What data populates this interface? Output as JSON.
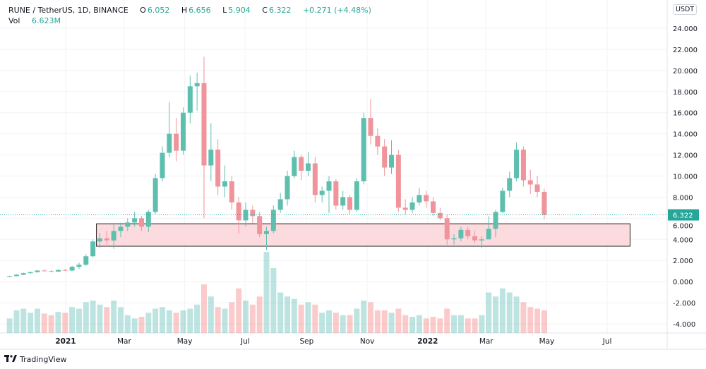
{
  "header": {
    "symbol": "RUNE / TetherUS, 1D, BINANCE",
    "open_label": "O",
    "open": "6.052",
    "high_label": "H",
    "high": "6.656",
    "low_label": "L",
    "low": "5.904",
    "close_label": "C",
    "close": "6.322",
    "change": "+0.271 (+4.48%)",
    "vol_label": "Vol",
    "vol": "6.623M"
  },
  "currency": "USDT",
  "footer": {
    "brand": "TradingView",
    "logo": "TV"
  },
  "colors": {
    "up": "#26a69a",
    "down": "#ef5350",
    "zone_fill": "#fcd7dc",
    "zone_border": "#222222"
  },
  "chart_data": {
    "type": "candlestick",
    "title": "RUNE / TetherUS, 1D, BINANCE",
    "candle_interval_shown": "weekly approximation of daily candles",
    "first_week_start": "2020-11-02",
    "fields": [
      "open",
      "high",
      "low",
      "close",
      "relative_volume"
    ],
    "candles": [
      [
        0.45,
        0.55,
        0.42,
        0.52,
        18
      ],
      [
        0.52,
        0.7,
        0.5,
        0.65,
        28
      ],
      [
        0.65,
        0.85,
        0.6,
        0.8,
        30
      ],
      [
        0.8,
        0.95,
        0.75,
        0.9,
        25
      ],
      [
        0.9,
        1.1,
        0.85,
        1.05,
        30
      ],
      [
        1.05,
        1.15,
        0.95,
        1.0,
        24
      ],
      [
        1.0,
        1.1,
        0.9,
        0.95,
        22
      ],
      [
        0.95,
        1.15,
        0.9,
        1.1,
        26
      ],
      [
        1.1,
        1.2,
        1.0,
        1.05,
        25
      ],
      [
        1.05,
        1.5,
        1.0,
        1.4,
        32
      ],
      [
        1.4,
        1.8,
        1.2,
        1.6,
        30
      ],
      [
        1.6,
        2.6,
        1.5,
        2.4,
        38
      ],
      [
        2.4,
        4.0,
        2.3,
        3.8,
        40
      ],
      [
        3.8,
        4.6,
        3.2,
        4.1,
        35
      ],
      [
        4.1,
        4.8,
        3.3,
        3.9,
        32
      ],
      [
        3.9,
        5.4,
        3.1,
        4.8,
        40
      ],
      [
        4.8,
        5.6,
        4.2,
        5.2,
        32
      ],
      [
        5.2,
        6.0,
        4.8,
        5.6,
        22
      ],
      [
        5.6,
        6.6,
        5.2,
        6.0,
        18
      ],
      [
        6.0,
        6.2,
        4.8,
        5.2,
        20
      ],
      [
        5.2,
        6.8,
        4.7,
        6.6,
        25
      ],
      [
        6.6,
        10.2,
        6.4,
        9.8,
        30
      ],
      [
        9.8,
        12.8,
        9.5,
        12.2,
        32
      ],
      [
        12.2,
        17.0,
        11.8,
        14.0,
        28
      ],
      [
        14.0,
        15.5,
        11.4,
        12.4,
        25
      ],
      [
        12.4,
        16.5,
        12.0,
        16.0,
        28
      ],
      [
        16.0,
        19.5,
        15.0,
        18.5,
        30
      ],
      [
        18.5,
        19.8,
        16.2,
        18.8,
        35
      ],
      [
        18.8,
        21.3,
        6.0,
        11.0,
        60
      ],
      [
        11.0,
        15.0,
        9.5,
        12.5,
        45
      ],
      [
        12.5,
        13.5,
        8.2,
        9.0,
        32
      ],
      [
        9.0,
        11.0,
        8.0,
        9.5,
        30
      ],
      [
        9.5,
        10.0,
        6.8,
        7.5,
        38
      ],
      [
        7.5,
        8.0,
        4.5,
        5.8,
        55
      ],
      [
        5.8,
        7.5,
        5.2,
        6.8,
        40
      ],
      [
        6.8,
        7.2,
        5.5,
        6.2,
        35
      ],
      [
        6.2,
        6.6,
        4.2,
        4.5,
        45
      ],
      [
        4.5,
        5.2,
        3.0,
        4.8,
        100
      ],
      [
        4.8,
        7.2,
        4.6,
        6.8,
        80
      ],
      [
        6.8,
        8.4,
        6.5,
        7.8,
        50
      ],
      [
        7.8,
        10.5,
        7.2,
        10.0,
        45
      ],
      [
        10.0,
        12.4,
        9.8,
        11.8,
        42
      ],
      [
        11.8,
        12.0,
        9.6,
        10.5,
        35
      ],
      [
        10.5,
        12.3,
        10.0,
        11.2,
        38
      ],
      [
        11.2,
        11.8,
        7.5,
        8.2,
        35
      ],
      [
        8.2,
        9.0,
        7.5,
        8.6,
        25
      ],
      [
        8.6,
        10.0,
        6.5,
        9.5,
        28
      ],
      [
        9.5,
        9.7,
        6.8,
        7.2,
        25
      ],
      [
        7.2,
        8.6,
        6.8,
        8.0,
        22
      ],
      [
        8.0,
        8.2,
        6.4,
        6.8,
        22
      ],
      [
        6.8,
        9.8,
        6.6,
        9.5,
        30
      ],
      [
        9.5,
        16.0,
        9.2,
        15.5,
        40
      ],
      [
        15.5,
        17.3,
        13.0,
        13.8,
        38
      ],
      [
        13.8,
        14.5,
        12.0,
        12.8,
        28
      ],
      [
        12.8,
        13.5,
        10.0,
        10.8,
        28
      ],
      [
        10.8,
        13.4,
        10.2,
        12.0,
        25
      ],
      [
        12.0,
        12.5,
        6.6,
        7.0,
        30
      ],
      [
        7.0,
        7.8,
        6.3,
        6.8,
        22
      ],
      [
        6.8,
        8.0,
        6.5,
        7.5,
        20
      ],
      [
        7.5,
        8.9,
        7.2,
        8.2,
        22
      ],
      [
        8.2,
        8.6,
        7.0,
        7.6,
        18
      ],
      [
        7.6,
        8.0,
        6.2,
        6.5,
        20
      ],
      [
        6.5,
        7.0,
        5.8,
        6.0,
        18
      ],
      [
        6.0,
        6.3,
        3.5,
        4.0,
        30
      ],
      [
        4.0,
        4.5,
        3.5,
        4.1,
        22
      ],
      [
        4.1,
        5.2,
        3.8,
        4.9,
        22
      ],
      [
        4.9,
        5.2,
        4.0,
        4.3,
        18
      ],
      [
        4.3,
        4.8,
        3.6,
        3.9,
        18
      ],
      [
        3.9,
        4.3,
        3.2,
        4.0,
        22
      ],
      [
        4.0,
        6.2,
        4.0,
        5.0,
        50
      ],
      [
        5.0,
        6.8,
        4.2,
        6.6,
        45
      ],
      [
        6.6,
        8.9,
        6.5,
        8.6,
        55
      ],
      [
        8.6,
        10.4,
        8.0,
        9.8,
        50
      ],
      [
        9.8,
        13.2,
        9.5,
        12.5,
        45
      ],
      [
        12.5,
        12.8,
        9.0,
        9.6,
        38
      ],
      [
        9.6,
        10.6,
        8.3,
        9.2,
        32
      ],
      [
        9.2,
        10.0,
        8.0,
        8.5,
        30
      ],
      [
        8.5,
        8.8,
        5.9,
        6.322,
        28
      ]
    ],
    "last_price": 6.322,
    "support_zone": {
      "price_low": 3.35,
      "price_high": 5.48,
      "start": "2021-02-01",
      "end": "2022-07-24"
    },
    "y_axis": {
      "min": -4,
      "max": 24,
      "ticks": [
        "24.000",
        "22.000",
        "20.000",
        "18.000",
        "16.000",
        "14.000",
        "12.000",
        "10.000",
        "8.000",
        "6.000",
        "4.000",
        "2.000",
        "0.000",
        "-2.000",
        "-4.000"
      ]
    },
    "x_axis": {
      "ticks": [
        {
          "label": "2021",
          "date": "2021-01-01",
          "bold": true
        },
        {
          "label": "Mar",
          "date": "2021-03-01"
        },
        {
          "label": "May",
          "date": "2021-05-01"
        },
        {
          "label": "Jul",
          "date": "2021-07-01"
        },
        {
          "label": "Sep",
          "date": "2021-09-01"
        },
        {
          "label": "Nov",
          "date": "2021-11-01"
        },
        {
          "label": "2022",
          "date": "2022-01-01",
          "bold": true
        },
        {
          "label": "Mar",
          "date": "2022-03-01"
        },
        {
          "label": "May",
          "date": "2022-05-01"
        },
        {
          "label": "Jul",
          "date": "2022-07-01"
        }
      ]
    },
    "grid": true
  }
}
